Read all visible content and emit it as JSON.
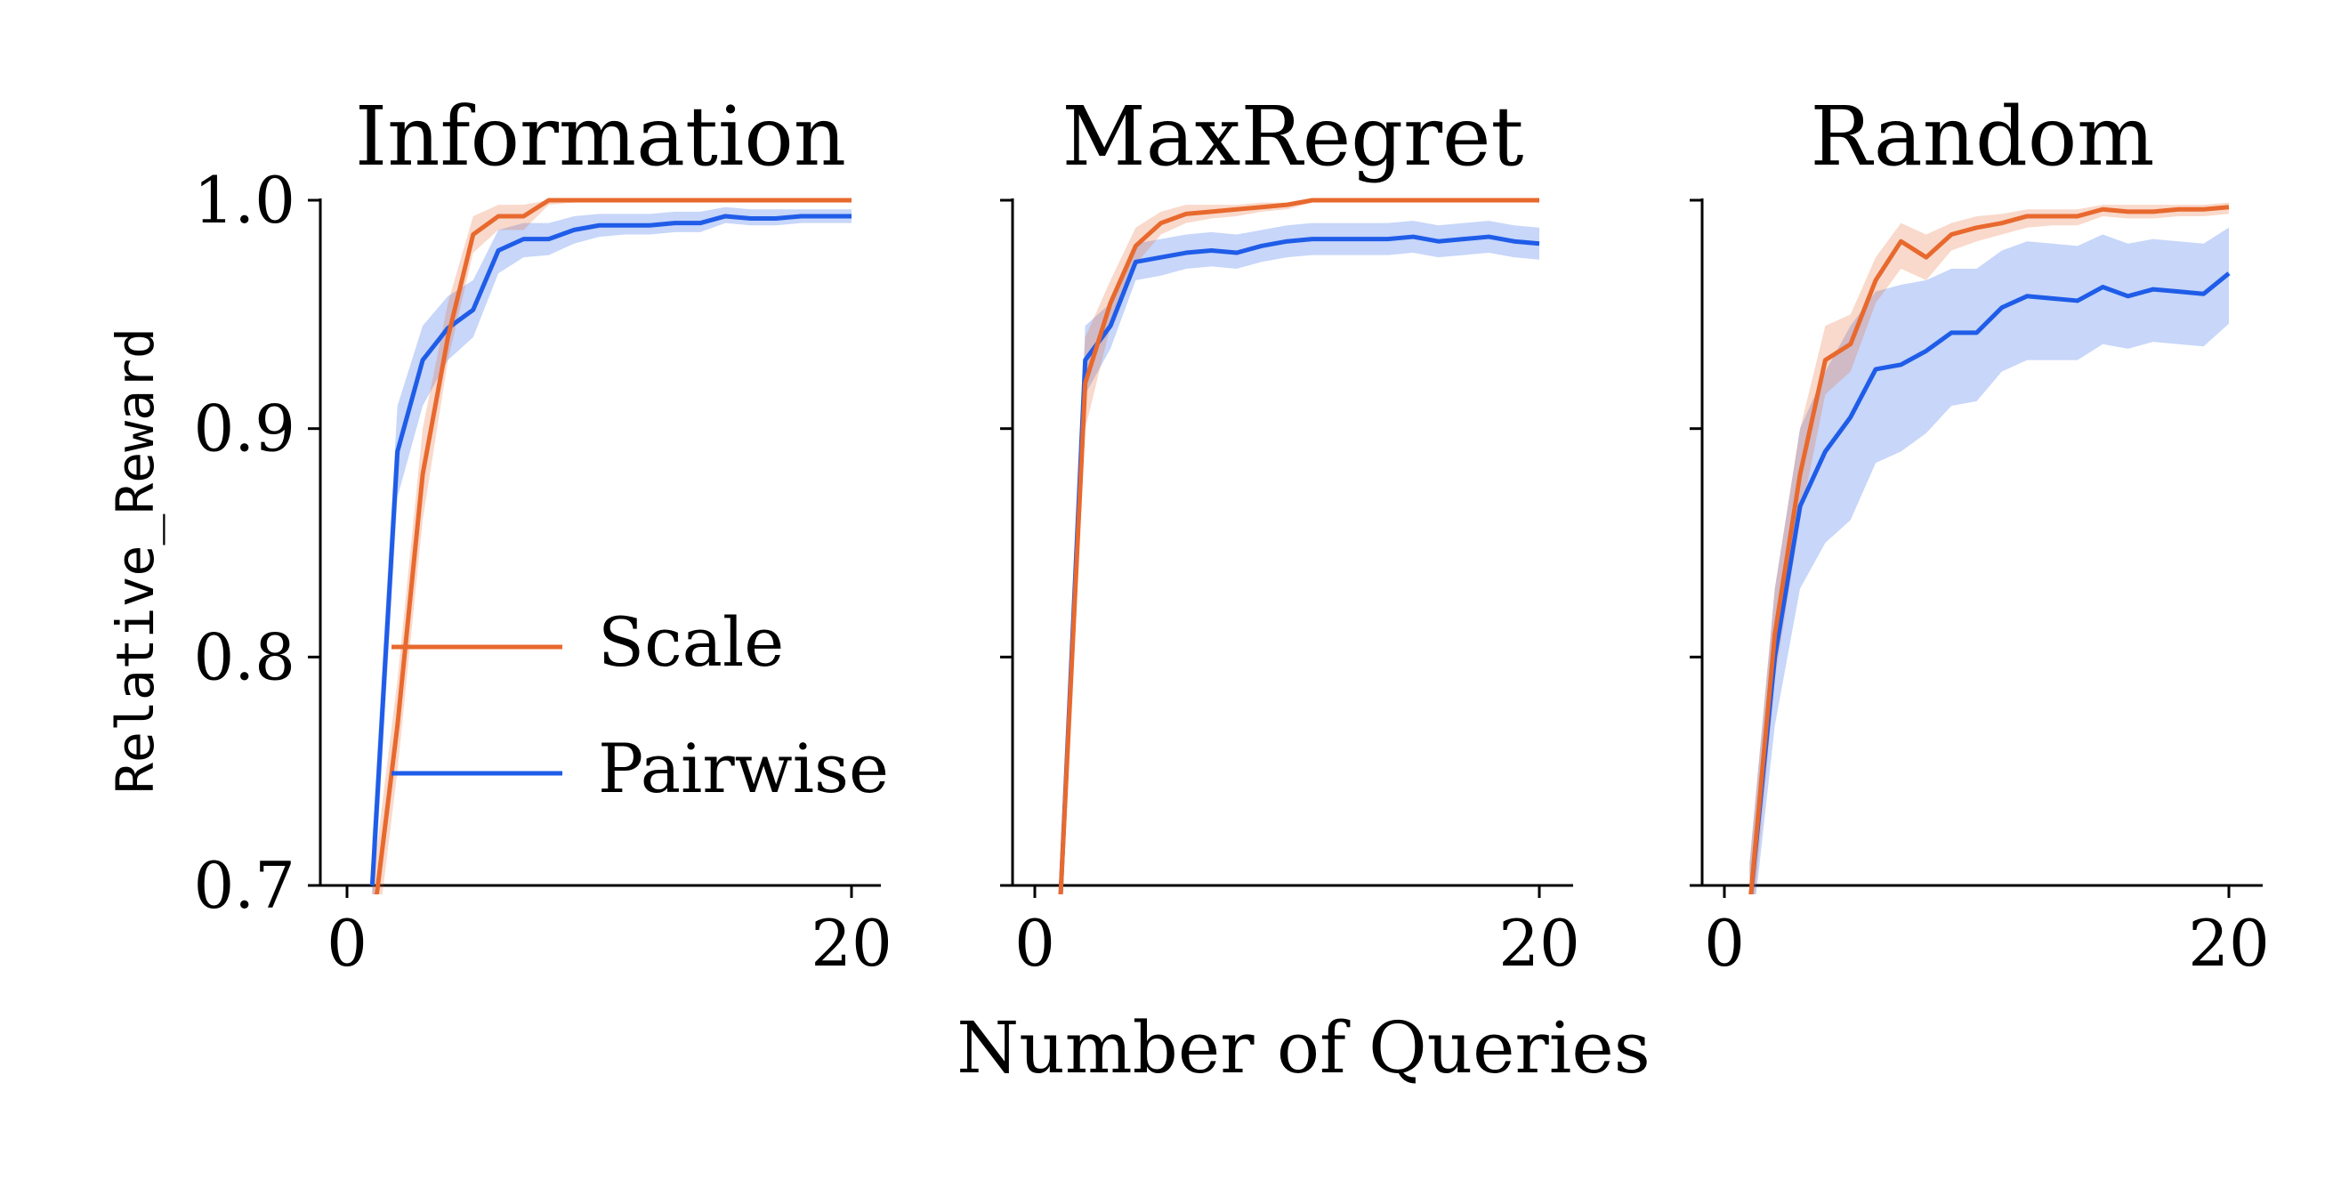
{
  "figure": {
    "ylabel": "Relative_Reward",
    "xlabel": "Number of Queries",
    "legend": {
      "placement": "lower-right of first panel",
      "entries": [
        "Scale",
        "Pairwise"
      ]
    },
    "colors": {
      "Scale": "#e8692e",
      "Pairwise": "#1f5ce8"
    }
  },
  "chart_data": [
    {
      "type": "line",
      "title": "Information",
      "xlim": [
        -1,
        21
      ],
      "ylim": [
        0.7,
        1.0
      ],
      "xticks": [
        "0",
        "20"
      ],
      "yticks": [
        "0.7",
        "0.8",
        "0.9",
        "1.0"
      ],
      "x": [
        1,
        2,
        3,
        4,
        5,
        6,
        7,
        8,
        9,
        10,
        11,
        12,
        13,
        14,
        15,
        16,
        17,
        18,
        19,
        20
      ],
      "series": [
        {
          "name": "Scale",
          "values": [
            0.68,
            0.77,
            0.88,
            0.94,
            0.985,
            0.993,
            0.993,
            1.0,
            1.0,
            1.0,
            1.0,
            1.0,
            1.0,
            1.0,
            1.0,
            1.0,
            1.0,
            1.0,
            1.0,
            1.0
          ],
          "lower": [
            0.66,
            0.75,
            0.86,
            0.93,
            0.977,
            0.987,
            0.987,
            0.998,
            0.999,
            0.999,
            0.999,
            0.999,
            0.999,
            0.999,
            0.999,
            0.999,
            0.999,
            0.999,
            0.999,
            0.999
          ],
          "upper": [
            0.7,
            0.79,
            0.9,
            0.955,
            0.993,
            0.998,
            0.998,
            1.0,
            1.0,
            1.0,
            1.0,
            1.0,
            1.0,
            1.0,
            1.0,
            1.0,
            1.0,
            1.0,
            1.0,
            1.0
          ]
        },
        {
          "name": "Pairwise",
          "values": [
            0.7,
            0.89,
            0.93,
            0.944,
            0.952,
            0.978,
            0.983,
            0.983,
            0.987,
            0.989,
            0.989,
            0.989,
            0.99,
            0.99,
            0.993,
            0.992,
            0.992,
            0.993,
            0.993,
            0.993
          ],
          "lower": [
            0.68,
            0.87,
            0.91,
            0.93,
            0.94,
            0.968,
            0.975,
            0.976,
            0.981,
            0.984,
            0.985,
            0.985,
            0.986,
            0.986,
            0.99,
            0.989,
            0.989,
            0.99,
            0.99,
            0.99
          ],
          "upper": [
            0.72,
            0.91,
            0.945,
            0.958,
            0.965,
            0.987,
            0.99,
            0.99,
            0.993,
            0.994,
            0.994,
            0.994,
            0.995,
            0.995,
            0.997,
            0.996,
            0.996,
            0.996,
            0.996,
            0.996
          ]
        }
      ]
    },
    {
      "type": "line",
      "title": "MaxRegret",
      "xlim": [
        -1,
        21
      ],
      "ylim": [
        0.7,
        1.0
      ],
      "xticks": [
        "0",
        "20"
      ],
      "yticks": [
        "0.7",
        "0.8",
        "0.9",
        "1.0"
      ],
      "x": [
        1,
        2,
        3,
        4,
        5,
        6,
        7,
        8,
        9,
        10,
        11,
        12,
        13,
        14,
        15,
        16,
        17,
        18,
        19,
        20
      ],
      "series": [
        {
          "name": "Scale",
          "values": [
            0.69,
            0.92,
            0.955,
            0.98,
            0.99,
            0.994,
            0.995,
            0.996,
            0.997,
            0.998,
            1.0,
            1.0,
            1.0,
            1.0,
            1.0,
            1.0,
            1.0,
            1.0,
            1.0,
            1.0
          ],
          "lower": [
            0.68,
            0.9,
            0.945,
            0.972,
            0.985,
            0.99,
            0.992,
            0.993,
            0.995,
            0.996,
            0.999,
            0.999,
            0.999,
            0.999,
            0.999,
            0.999,
            0.999,
            0.999,
            0.999,
            0.999
          ],
          "upper": [
            0.7,
            0.94,
            0.965,
            0.988,
            0.995,
            0.998,
            0.998,
            0.998,
            0.999,
            0.999,
            1.0,
            1.0,
            1.0,
            1.0,
            1.0,
            1.0,
            1.0,
            1.0,
            1.0,
            1.0
          ]
        },
        {
          "name": "Pairwise",
          "values": [
            0.69,
            0.93,
            0.945,
            0.973,
            0.975,
            0.977,
            0.978,
            0.977,
            0.98,
            0.982,
            0.983,
            0.983,
            0.983,
            0.983,
            0.984,
            0.982,
            0.983,
            0.984,
            0.982,
            0.981
          ],
          "lower": [
            0.68,
            0.915,
            0.935,
            0.965,
            0.967,
            0.97,
            0.971,
            0.97,
            0.973,
            0.975,
            0.976,
            0.976,
            0.976,
            0.976,
            0.977,
            0.975,
            0.976,
            0.977,
            0.975,
            0.974
          ],
          "upper": [
            0.7,
            0.945,
            0.955,
            0.981,
            0.983,
            0.985,
            0.986,
            0.985,
            0.987,
            0.989,
            0.99,
            0.99,
            0.99,
            0.99,
            0.991,
            0.989,
            0.99,
            0.991,
            0.989,
            0.988
          ]
        }
      ]
    },
    {
      "type": "line",
      "title": "Random",
      "xlim": [
        -1,
        21
      ],
      "ylim": [
        0.7,
        1.0
      ],
      "xticks": [
        "0",
        "20"
      ],
      "yticks": [
        "0.7",
        "0.8",
        "0.9",
        "1.0"
      ],
      "x": [
        1,
        2,
        3,
        4,
        5,
        6,
        7,
        8,
        9,
        10,
        11,
        12,
        13,
        14,
        15,
        16,
        17,
        18,
        19,
        20
      ],
      "series": [
        {
          "name": "Scale",
          "values": [
            0.69,
            0.81,
            0.88,
            0.93,
            0.937,
            0.965,
            0.982,
            0.975,
            0.985,
            0.988,
            0.99,
            0.993,
            0.993,
            0.993,
            0.996,
            0.995,
            0.995,
            0.996,
            0.996,
            0.997
          ],
          "lower": [
            0.67,
            0.79,
            0.86,
            0.915,
            0.925,
            0.955,
            0.97,
            0.965,
            0.978,
            0.982,
            0.985,
            0.988,
            0.989,
            0.989,
            0.993,
            0.992,
            0.992,
            0.993,
            0.993,
            0.994
          ],
          "upper": [
            0.71,
            0.83,
            0.9,
            0.945,
            0.95,
            0.975,
            0.99,
            0.985,
            0.99,
            0.993,
            0.994,
            0.996,
            0.996,
            0.996,
            0.998,
            0.998,
            0.998,
            0.998,
            0.998,
            0.999
          ]
        },
        {
          "name": "Pairwise",
          "values": [
            0.69,
            0.8,
            0.866,
            0.89,
            0.905,
            0.926,
            0.928,
            0.934,
            0.942,
            0.942,
            0.953,
            0.958,
            0.957,
            0.956,
            0.962,
            0.958,
            0.961,
            0.96,
            0.959,
            0.968
          ],
          "lower": [
            0.67,
            0.77,
            0.83,
            0.85,
            0.86,
            0.885,
            0.89,
            0.898,
            0.91,
            0.912,
            0.925,
            0.93,
            0.93,
            0.93,
            0.937,
            0.935,
            0.938,
            0.937,
            0.936,
            0.946
          ],
          "upper": [
            0.71,
            0.83,
            0.9,
            0.925,
            0.945,
            0.96,
            0.963,
            0.965,
            0.97,
            0.97,
            0.978,
            0.982,
            0.981,
            0.98,
            0.985,
            0.981,
            0.983,
            0.982,
            0.981,
            0.988
          ]
        }
      ]
    }
  ]
}
